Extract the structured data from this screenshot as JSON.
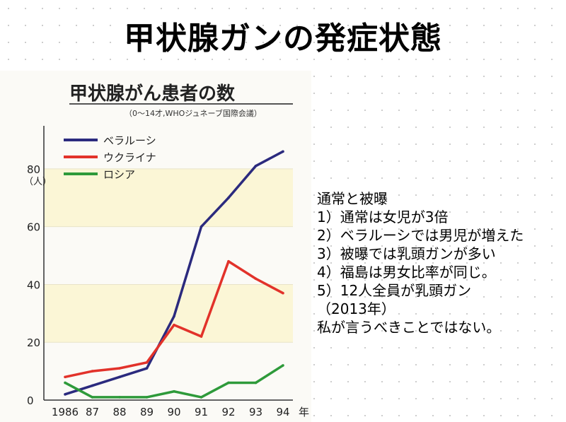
{
  "slide": {
    "title": "甲状腺ガンの発症状態"
  },
  "notes": {
    "heading": "通常と被曝",
    "items": [
      "1）通常は女児が3倍",
      "2）ベラルーシでは男児が増えた",
      "3）被曝では乳頭ガンが多い",
      "4）福島は男女比率が同じ。",
      "5）12人全員が乳頭ガン",
      "（2013年）",
      "私が言うべきことではない。"
    ]
  },
  "chart_data": {
    "type": "line",
    "title": "甲状腺がん患者の数",
    "subtitle": "（0～14才,WHOジュネーブ国際会議）",
    "xlabel": "",
    "x_unit": "年",
    "ylabel": "（人）",
    "categories": [
      "1986",
      "87",
      "88",
      "89",
      "90",
      "91",
      "92",
      "93",
      "94"
    ],
    "ylim": [
      0,
      90
    ],
    "yticks": [
      0,
      20,
      40,
      60,
      80
    ],
    "legend_position": "top-left",
    "series": [
      {
        "name": "ベラルーシ",
        "color": "#2b2a7e",
        "values": [
          2,
          5,
          8,
          11,
          29,
          60,
          70,
          81,
          86
        ]
      },
      {
        "name": "ウクライナ",
        "color": "#e2322a",
        "values": [
          8,
          10,
          11,
          13,
          26,
          22,
          48,
          42,
          37
        ]
      },
      {
        "name": "ロシア",
        "color": "#2e9a3a",
        "values": [
          6,
          1,
          1,
          1,
          3,
          1,
          6,
          6,
          12
        ]
      }
    ]
  }
}
